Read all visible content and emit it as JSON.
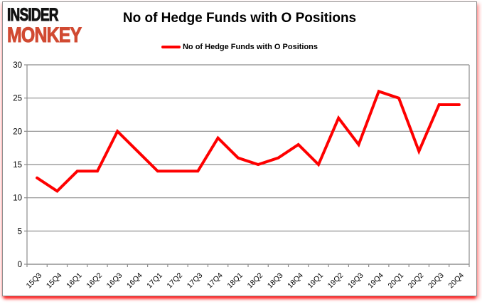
{
  "logo": {
    "line1": "INSIDER",
    "line2": "MONKEY"
  },
  "colors": {
    "line": "#fe0000",
    "grid": "#8c8c8c",
    "axis": "#8c8c8c",
    "logo_black": "#121212",
    "logo_red": "#d14a32",
    "glow": "#ff0000",
    "background": "#ffffff"
  },
  "chart_data": {
    "type": "line",
    "title": "No of Hedge Funds with O Positions",
    "categories": [
      "15Q3",
      "15Q4",
      "16Q1",
      "16Q2",
      "16Q3",
      "16Q4",
      "17Q1",
      "17Q2",
      "17Q3",
      "17Q4",
      "18Q1",
      "18Q2",
      "18Q3",
      "18Q4",
      "19Q1",
      "19Q2",
      "19Q3",
      "19Q4",
      "20Q1",
      "20Q2",
      "20Q3",
      "20Q4"
    ],
    "series": [
      {
        "name": "No of Hedge Funds with O Positions",
        "values": [
          13,
          11,
          14,
          14,
          20,
          17,
          14,
          14,
          14,
          19,
          16,
          15,
          16,
          18,
          15,
          22,
          18,
          26,
          25,
          17,
          24,
          24
        ]
      }
    ],
    "xlabel": "",
    "ylabel": "",
    "ylim": [
      0,
      30
    ],
    "yticks": [
      0,
      5,
      10,
      15,
      20,
      25,
      30
    ],
    "grid": "horizontal",
    "legend_position": "top-center"
  }
}
